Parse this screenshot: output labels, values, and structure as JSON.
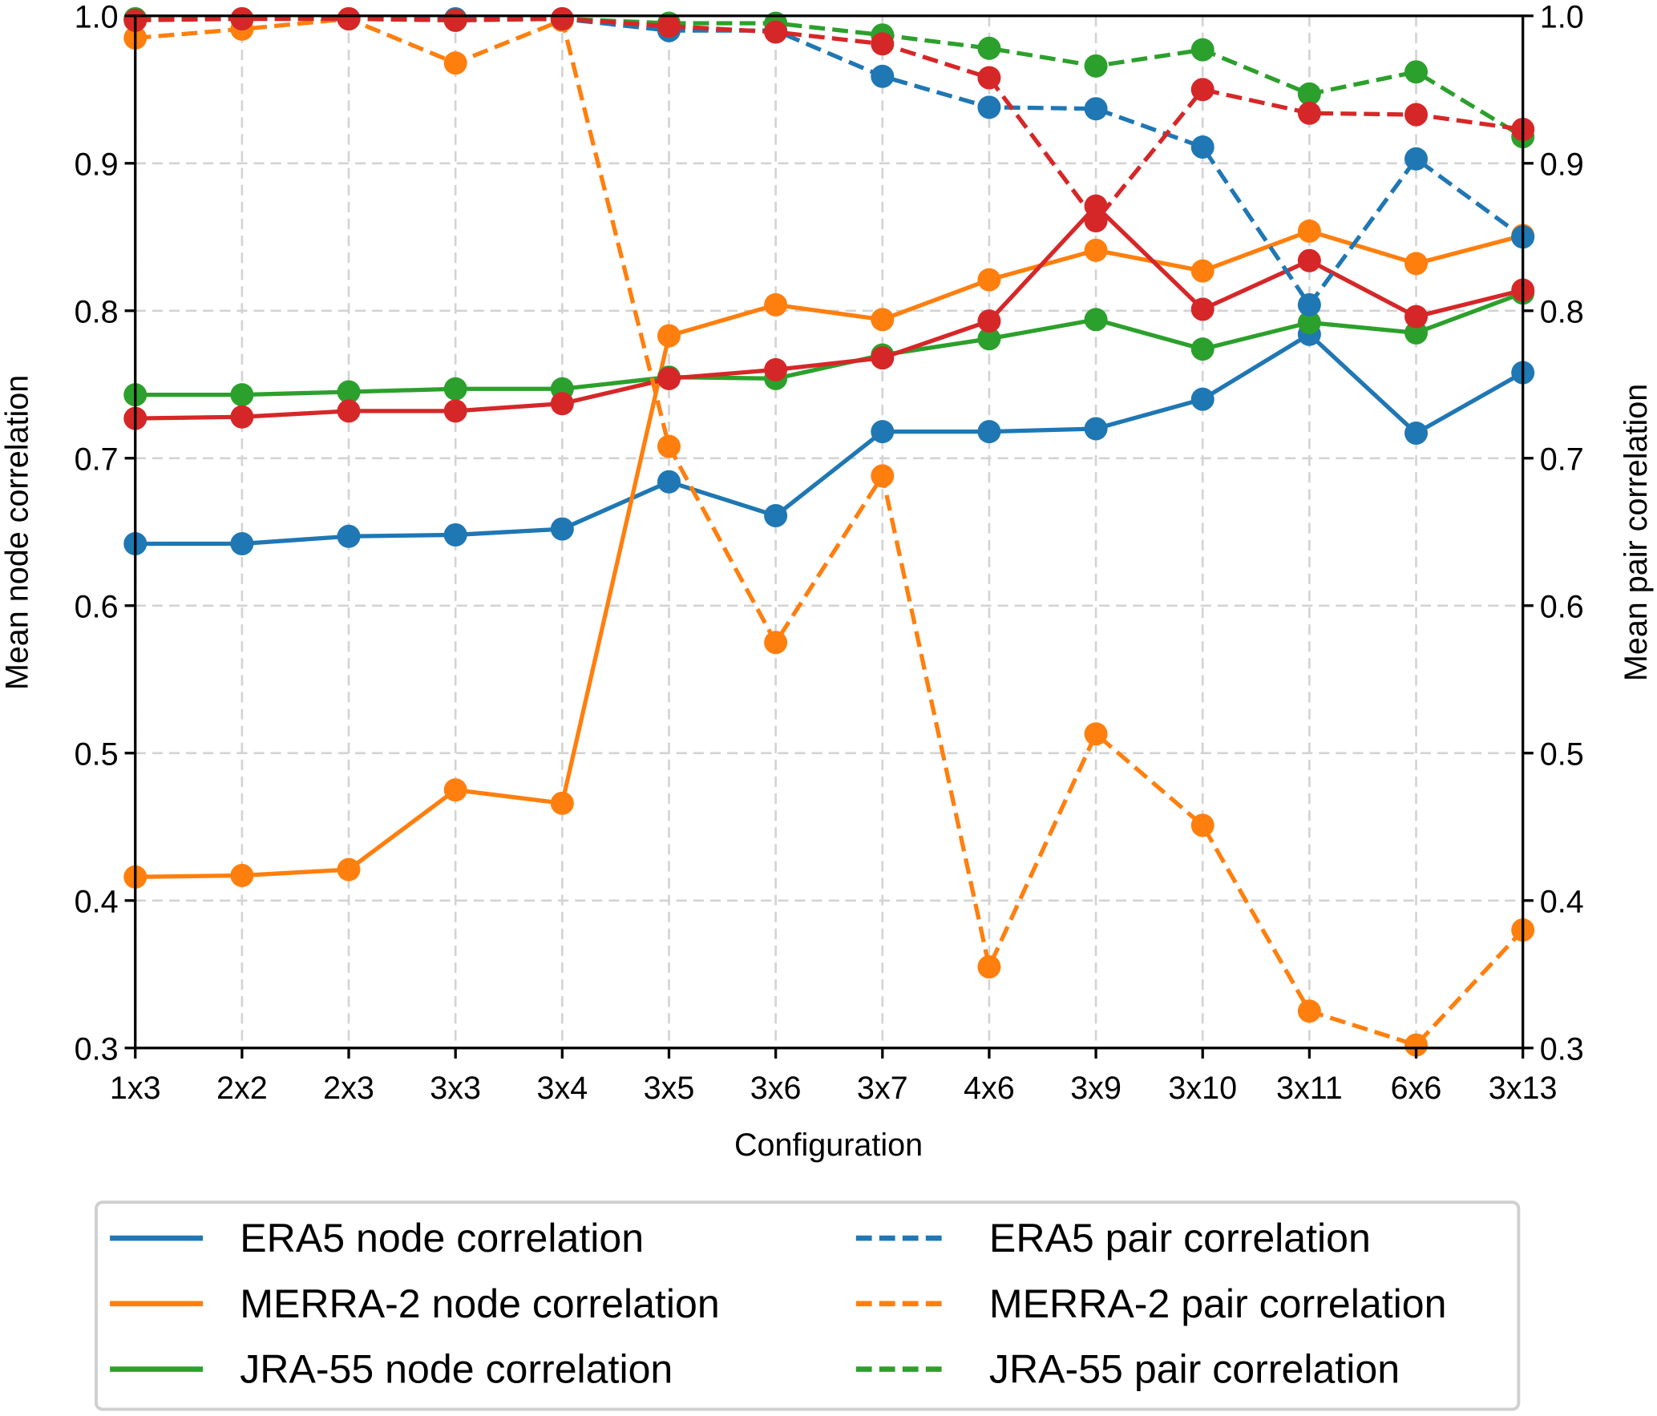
{
  "chart_data": {
    "type": "line",
    "title": "",
    "xlabel": "Configuration",
    "ylabel": "Mean node correlation",
    "ylabel_right": "Mean pair correlation",
    "categories": [
      "1x3",
      "2x2",
      "2x3",
      "3x3",
      "3x4",
      "3x5",
      "3x6",
      "3x7",
      "4x6",
      "3x9",
      "3x10",
      "3x11",
      "6x6",
      "3x13"
    ],
    "ylim": [
      0.3,
      1.0
    ],
    "ylim_right": [
      0.3,
      1.0
    ],
    "yticks": [
      "0.3",
      "0.4",
      "0.5",
      "0.6",
      "0.7",
      "0.8",
      "0.9",
      "1.0"
    ],
    "grid": true,
    "legend_placement": "below",
    "series": [
      {
        "name": "ERA5 node correlation",
        "color": "#1f77b4",
        "style": "solid",
        "in_legend": true,
        "values": [
          0.642,
          0.642,
          0.647,
          0.648,
          0.652,
          0.684,
          0.661,
          0.718,
          0.718,
          0.72,
          0.74,
          0.784,
          0.717,
          0.758
        ]
      },
      {
        "name": "MERRA-2 node correlation",
        "color": "#ff7f0e",
        "style": "solid",
        "in_legend": true,
        "values": [
          0.416,
          0.417,
          0.421,
          0.475,
          0.466,
          0.783,
          0.804,
          0.794,
          0.821,
          0.841,
          0.827,
          0.854,
          0.832,
          0.851
        ]
      },
      {
        "name": "JRA-55 node correlation",
        "color": "#2ca02c",
        "style": "solid",
        "in_legend": true,
        "values": [
          0.743,
          0.743,
          0.745,
          0.747,
          0.747,
          0.755,
          0.754,
          0.77,
          0.781,
          0.794,
          0.774,
          0.792,
          0.785,
          0.812
        ]
      },
      {
        "name": "",
        "color": "#d62728",
        "style": "solid",
        "in_legend": false,
        "values": [
          0.727,
          0.728,
          0.732,
          0.732,
          0.737,
          0.754,
          0.76,
          0.768,
          0.793,
          0.871,
          0.801,
          0.834,
          0.796,
          0.814
        ]
      },
      {
        "name": "ERA5 pair correlation",
        "color": "#1f77b4",
        "style": "dashed",
        "in_legend": true,
        "values": [
          0.998,
          0.998,
          0.998,
          0.998,
          0.998,
          0.99,
          0.99,
          0.959,
          0.938,
          0.937,
          0.911,
          0.804,
          0.903,
          0.85
        ]
      },
      {
        "name": "MERRA-2 pair correlation",
        "color": "#ff7f0e",
        "style": "dashed",
        "in_legend": true,
        "values": [
          0.985,
          0.991,
          0.998,
          0.968,
          0.997,
          0.708,
          0.575,
          0.688,
          0.355,
          0.513,
          0.451,
          0.325,
          0.302,
          0.38
        ]
      },
      {
        "name": "JRA-55 pair correlation",
        "color": "#2ca02c",
        "style": "dashed",
        "in_legend": true,
        "values": [
          0.998,
          0.998,
          0.998,
          0.997,
          0.998,
          0.995,
          0.995,
          0.987,
          0.978,
          0.966,
          0.977,
          0.947,
          0.962,
          0.918
        ]
      },
      {
        "name": "",
        "color": "#d62728",
        "style": "dashed",
        "in_legend": false,
        "values": [
          0.997,
          0.998,
          0.998,
          0.997,
          0.998,
          0.993,
          0.989,
          0.981,
          0.958,
          0.861,
          0.95,
          0.934,
          0.933,
          0.923
        ]
      }
    ],
    "legend": {
      "left": [
        "ERA5 node correlation",
        "MERRA-2 node correlation",
        "JRA-55 node correlation"
      ],
      "right": [
        "ERA5 pair correlation",
        "MERRA-2 pair correlation",
        "JRA-55 pair correlation"
      ]
    }
  }
}
